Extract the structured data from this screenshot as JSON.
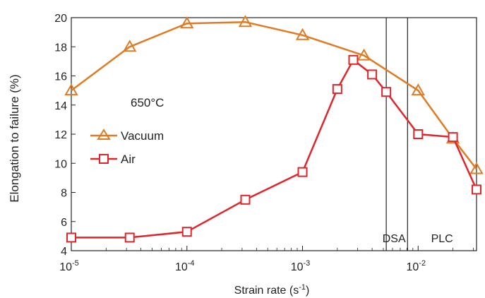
{
  "chart_data": {
    "type": "line",
    "xscale": "log",
    "xlabel": "Strain rate (s",
    "xlabel_sup": "-1",
    "xlabel_close": ")",
    "ylabel": "Elongation to failure (%)",
    "xlim": [
      1e-05,
      0.032
    ],
    "ylim": [
      4,
      20
    ],
    "yticks": [
      4,
      6,
      8,
      10,
      12,
      14,
      16,
      18,
      20
    ],
    "xticks": [
      {
        "value": 1e-05,
        "base": "10",
        "exp": "-5"
      },
      {
        "value": 0.0001,
        "base": "10",
        "exp": "-4"
      },
      {
        "value": 0.001,
        "base": "10",
        "exp": "-3"
      },
      {
        "value": 0.01,
        "base": "10",
        "exp": "-2"
      }
    ],
    "annotation": "650°C",
    "regions": [
      {
        "label": "DSA",
        "x_from": 0.0053,
        "x_to": 0.0081
      },
      {
        "label": "PLC",
        "x_from": 0.0081,
        "x_to": 0.032
      }
    ],
    "legend_position": "left-center",
    "series": [
      {
        "name": "Vacuum",
        "marker": "triangle",
        "color": "#e07b23",
        "x": [
          1e-05,
          3.2e-05,
          0.0001,
          0.00032,
          0.001,
          0.0034,
          0.01,
          0.02,
          0.032
        ],
        "y": [
          15.0,
          18.0,
          19.6,
          19.7,
          18.8,
          17.4,
          15.0,
          11.7,
          9.6
        ]
      },
      {
        "name": "Air",
        "marker": "square",
        "color": "#e0262b",
        "x": [
          1e-05,
          3.2e-05,
          0.0001,
          0.00032,
          0.001,
          0.002,
          0.00275,
          0.004,
          0.0053,
          0.01,
          0.02,
          0.032
        ],
        "y": [
          4.9,
          4.9,
          5.3,
          7.5,
          9.4,
          15.1,
          17.1,
          16.1,
          14.9,
          12.0,
          11.8,
          8.2
        ]
      }
    ]
  }
}
